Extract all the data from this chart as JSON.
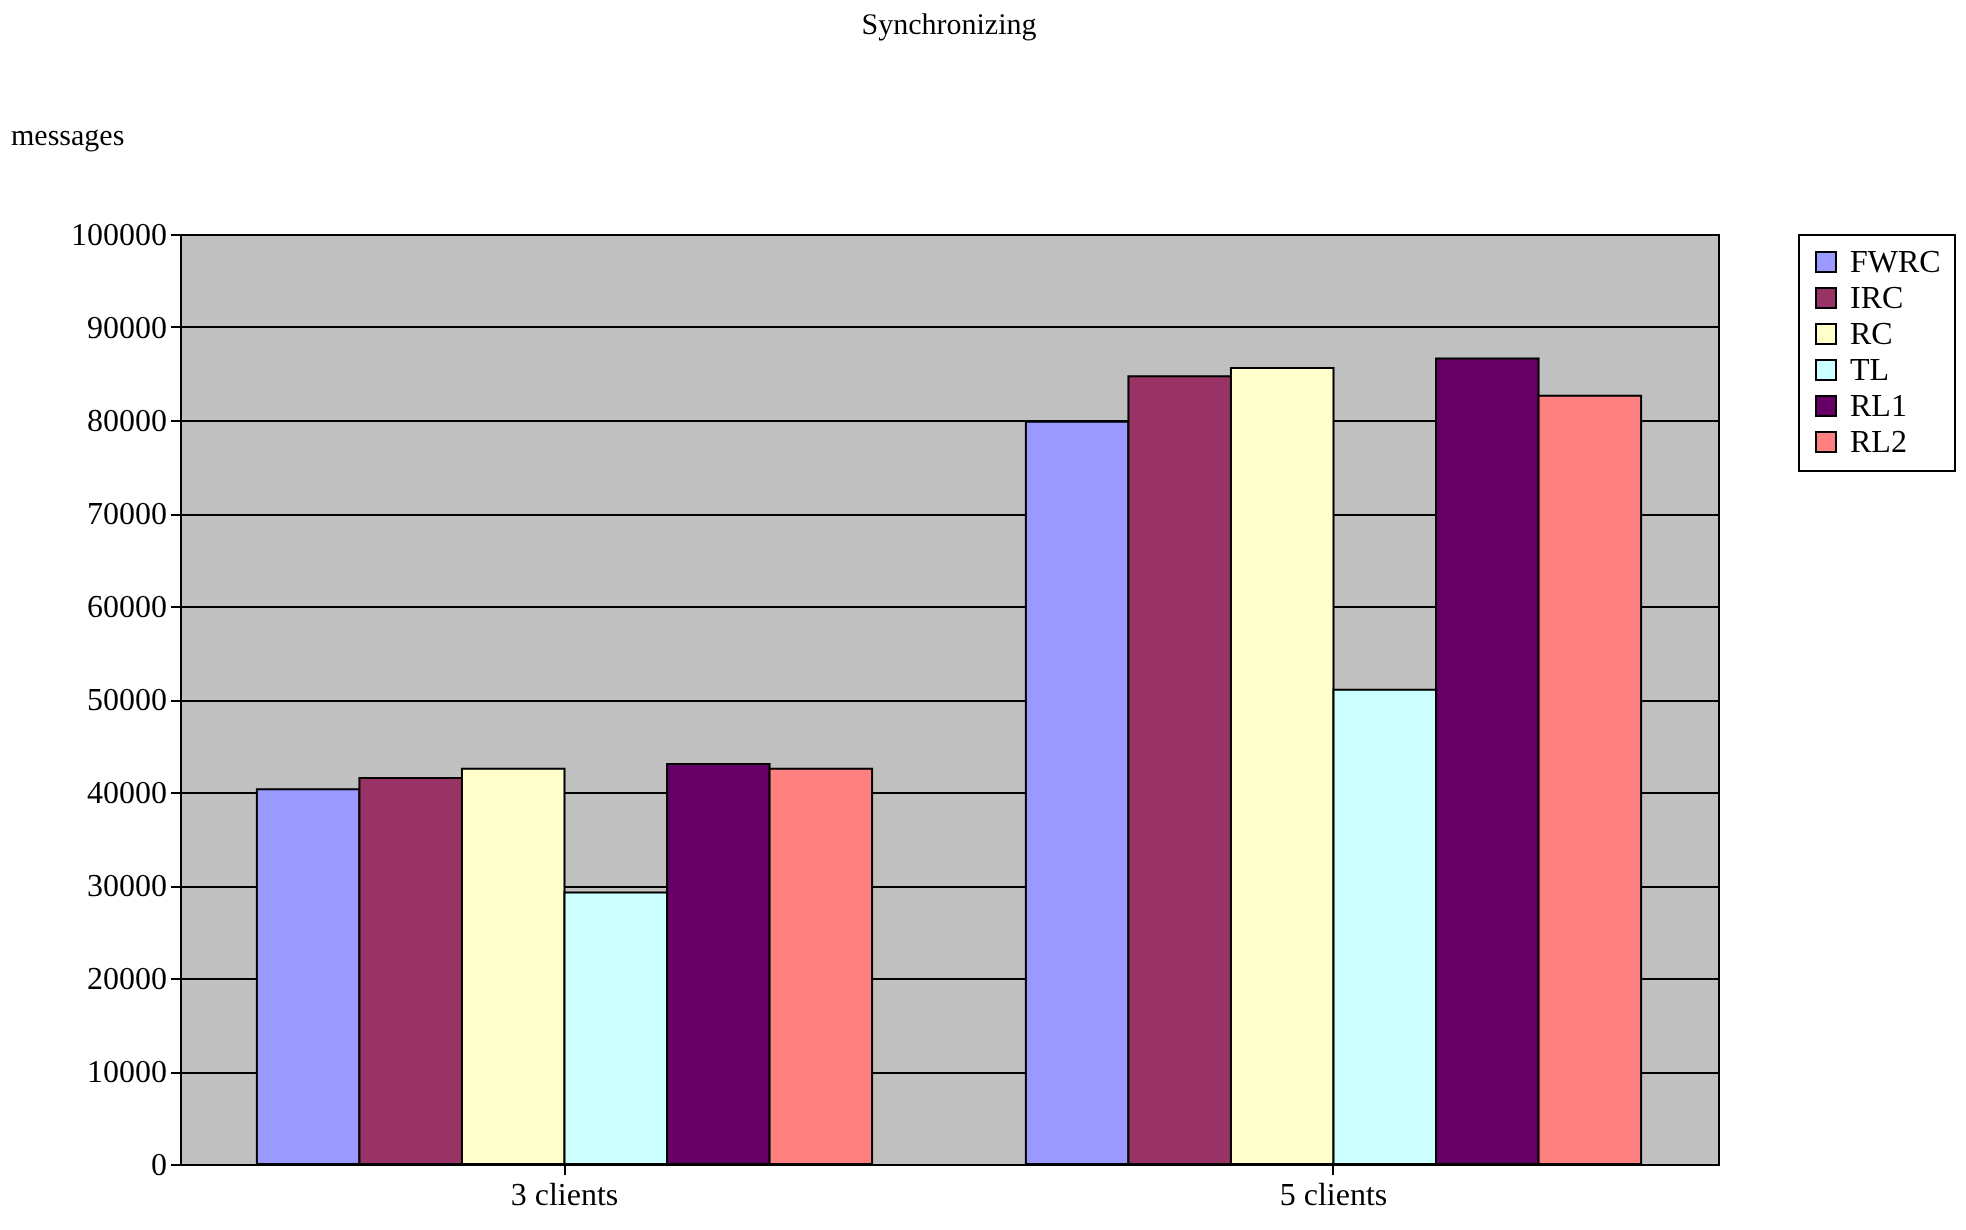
{
  "chart_data": {
    "type": "bar",
    "title": "Synchronizing",
    "ylabel": "messages",
    "categories": [
      "3 clients",
      "5 clients"
    ],
    "series": [
      {
        "name": "FWRC",
        "color": "#9999ff",
        "values": [
          40300,
          79800
        ]
      },
      {
        "name": "IRC",
        "color": "#993366",
        "values": [
          41500,
          84700
        ]
      },
      {
        "name": "RC",
        "color": "#ffffcc",
        "values": [
          42500,
          85600
        ]
      },
      {
        "name": "TL",
        "color": "#ccffff",
        "values": [
          29200,
          51000
        ]
      },
      {
        "name": "RL1",
        "color": "#660066",
        "values": [
          43000,
          86600
        ]
      },
      {
        "name": "RL2",
        "color": "#ff8080",
        "values": [
          42500,
          82600
        ]
      }
    ],
    "ylim": [
      0,
      100000
    ],
    "yticks": [
      0,
      10000,
      20000,
      30000,
      40000,
      50000,
      60000,
      70000,
      80000,
      90000,
      100000
    ],
    "grid": "y",
    "legend": "right"
  }
}
